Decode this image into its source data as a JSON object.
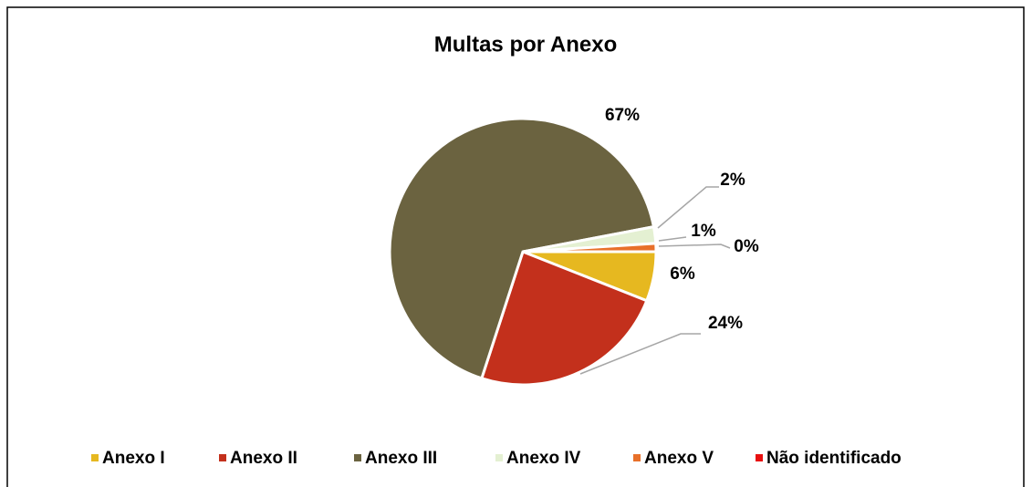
{
  "chart_data": {
    "type": "pie",
    "title": "Multas por Anexo",
    "categories": [
      "Anexo I",
      "Anexo II",
      "Anexo III",
      "Anexo IV",
      "Anexo V",
      "Não identificado"
    ],
    "values": [
      6,
      24,
      67,
      2,
      1,
      0
    ],
    "value_labels": [
      "6%",
      "24%",
      "67%",
      "2%",
      "1%",
      "0%"
    ],
    "colors": [
      "#e6b820",
      "#c3301c",
      "#6b6340",
      "#e4f0d2",
      "#e8702a",
      "#e81010"
    ],
    "legend": "bottom"
  }
}
